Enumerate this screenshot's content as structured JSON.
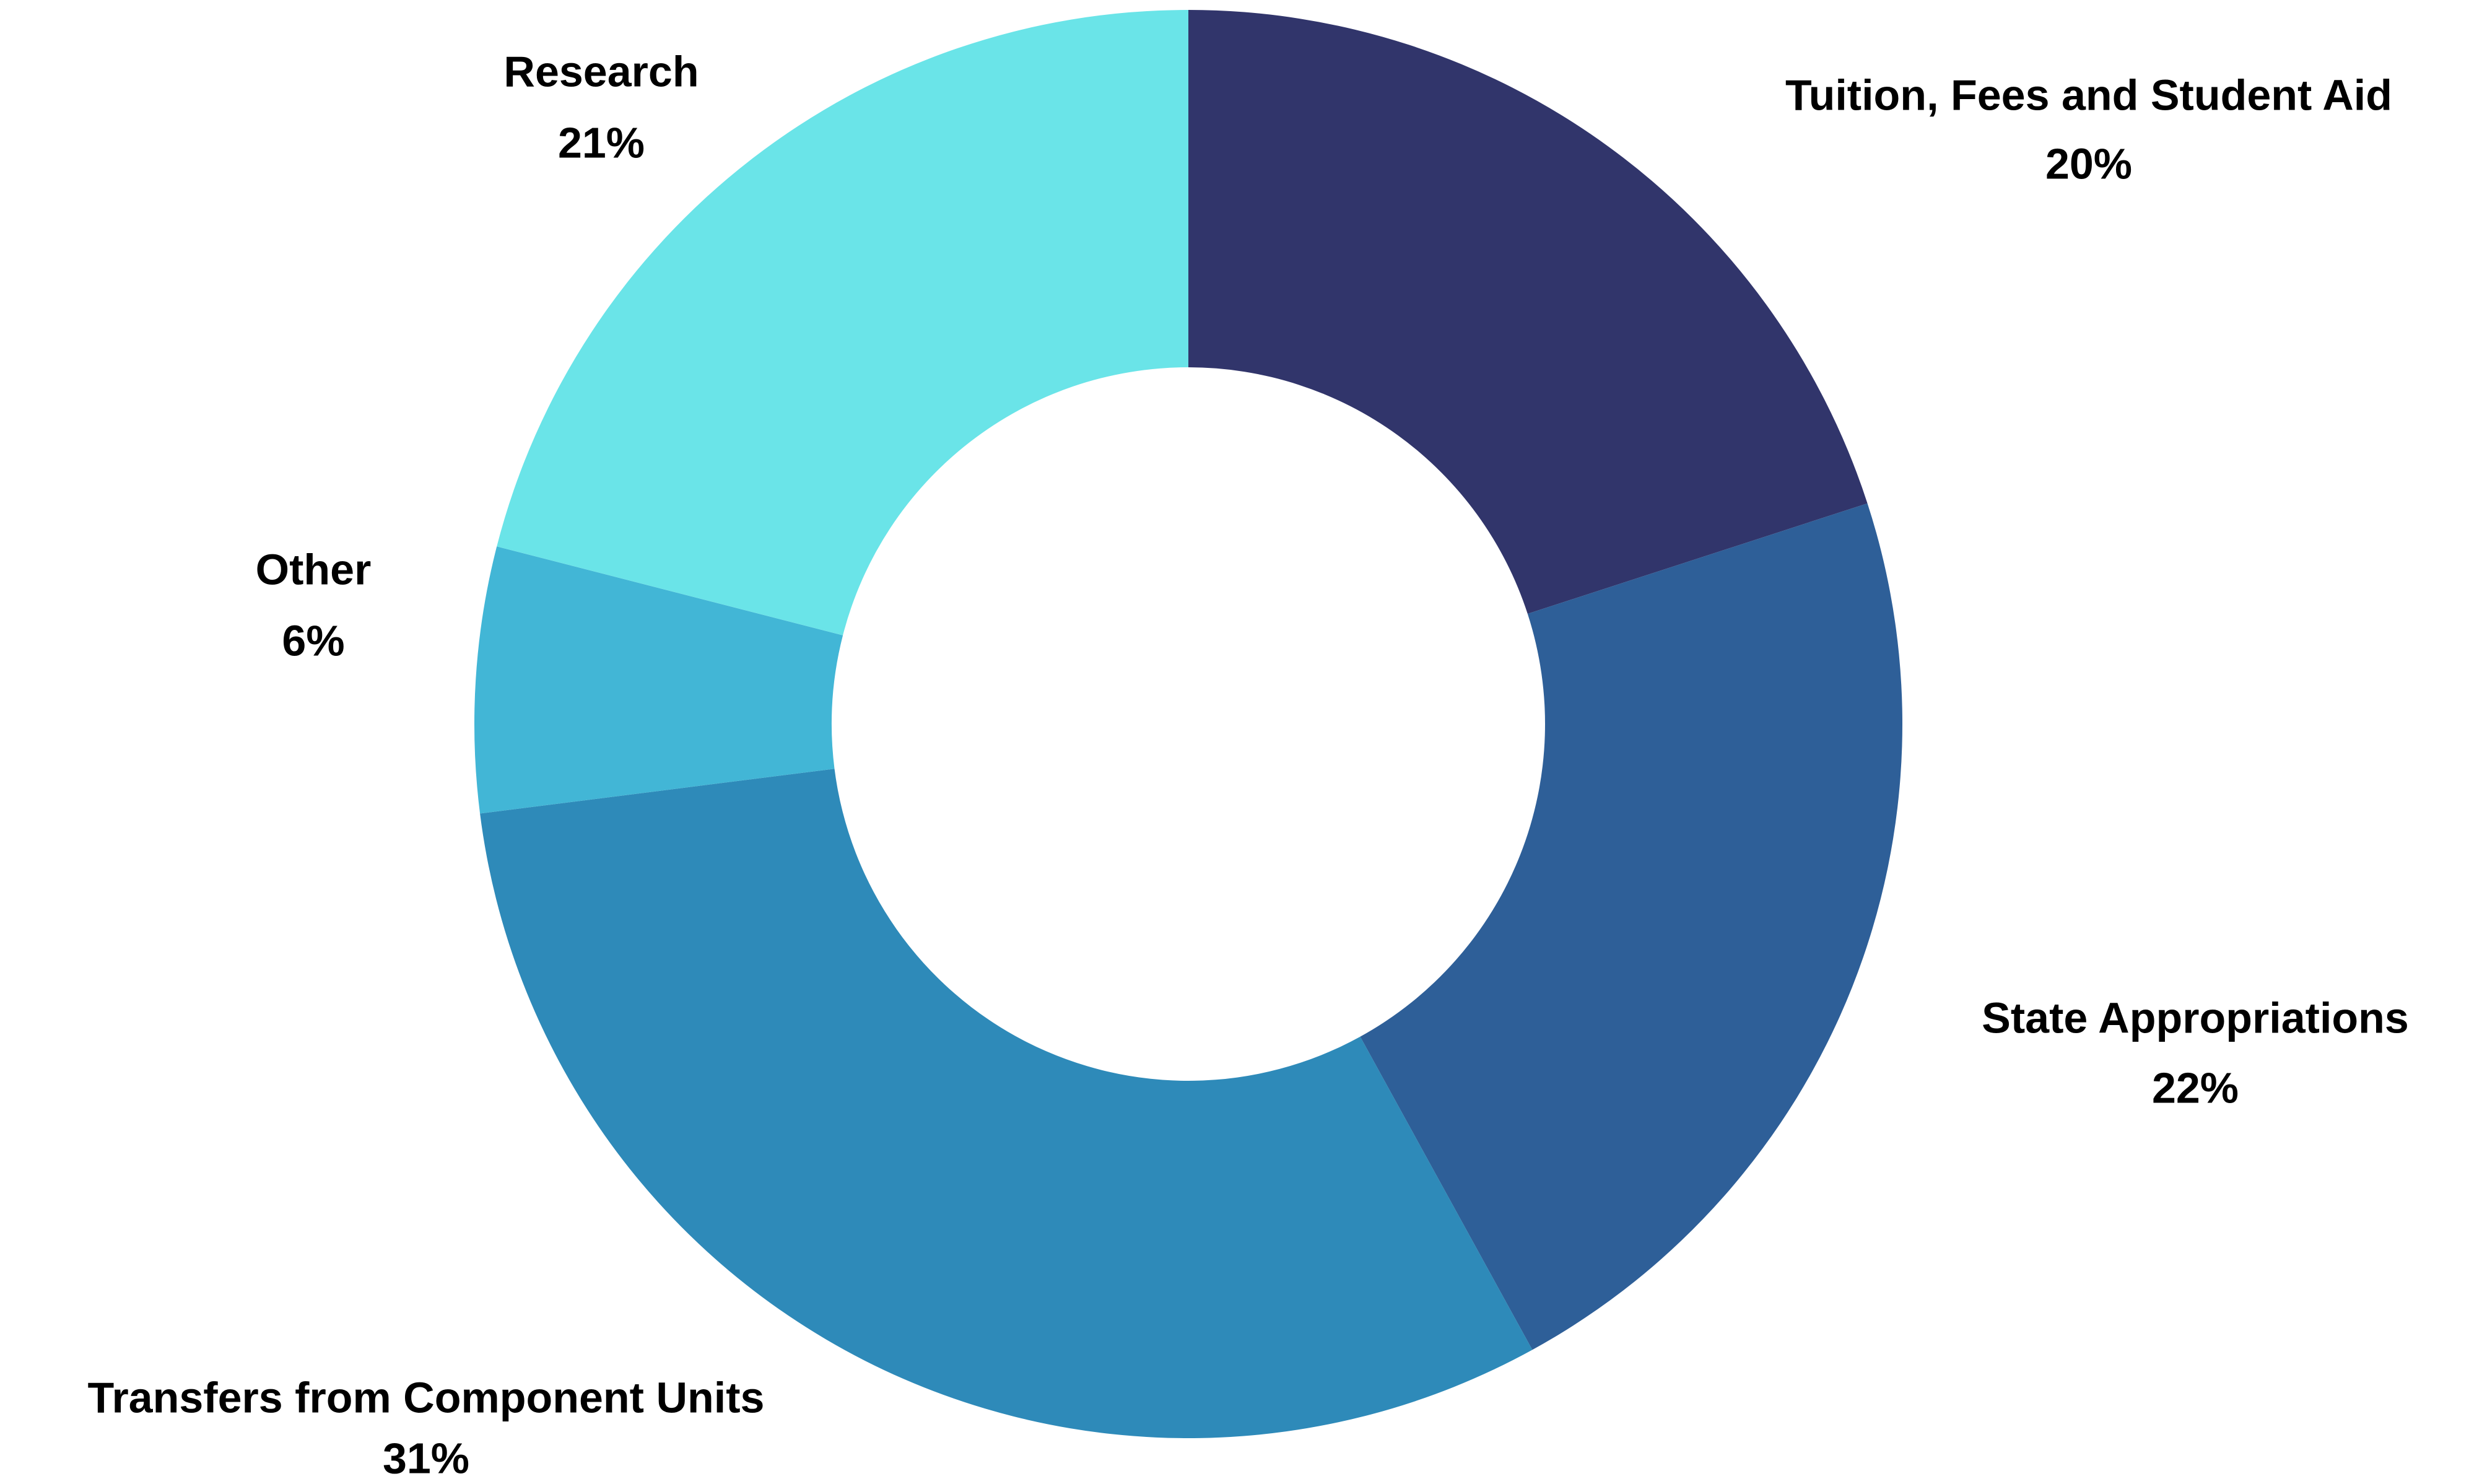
{
  "chart_data": {
    "type": "pie",
    "categories": [
      "Tuition, Fees and Student Aid",
      "State Appropriations",
      "Transfers from Component Units",
      "Other",
      "Research"
    ],
    "values": [
      20,
      22,
      31,
      6,
      21
    ],
    "value_labels": [
      "20%",
      "22%",
      "31%",
      "6%",
      "21%"
    ],
    "colors": [
      "#31356b",
      "#2e5f98",
      "#2e8ab9",
      "#42b6d6",
      "#6ae4e8"
    ],
    "donut": true
  }
}
